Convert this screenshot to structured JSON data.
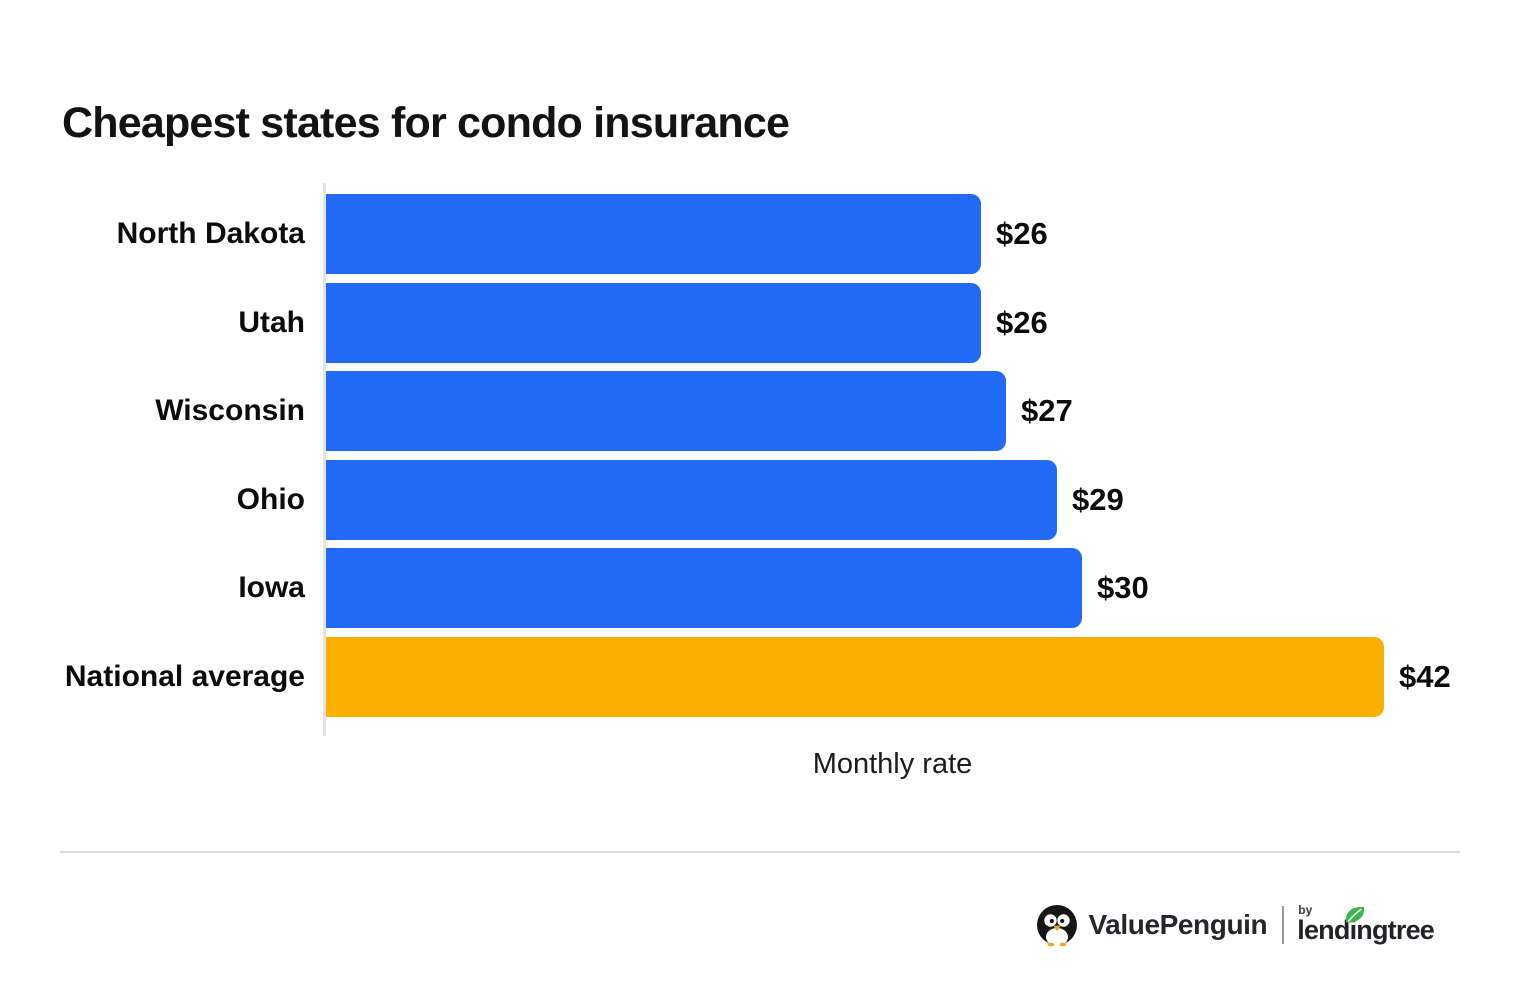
{
  "page": {
    "background": "#ffffff"
  },
  "title": "Cheapest states for condo insurance",
  "chart_data": {
    "type": "bar",
    "orientation": "horizontal",
    "title": "Cheapest states for condo insurance",
    "categories": [
      "North Dakota",
      "Utah",
      "Wisconsin",
      "Ohio",
      "Iowa",
      "National average"
    ],
    "values": [
      26,
      26,
      27,
      29,
      30,
      42
    ],
    "value_labels": [
      "$26",
      "$26",
      "$27",
      "$29",
      "$30",
      "$42"
    ],
    "xlabel": "Monthly rate",
    "ylabel": "",
    "xlim": [
      0,
      42
    ],
    "grid": false,
    "legend_position": "none",
    "bar_colors": [
      "#2269F6",
      "#2269F6",
      "#2269F6",
      "#2269F6",
      "#2269F6",
      "#FBB000"
    ],
    "highlight_index": 5,
    "colors": {
      "state_bar_blue": "#2269F6",
      "national_average_orange": "#FBB000",
      "axis_line": "#e3e3e3",
      "label_text": "#0c0c0c"
    }
  },
  "footer": {
    "valuepenguin_label": "ValuePenguin",
    "by_label": "by",
    "lendingtree_full": "lendingtree",
    "lendingtree_parts": {
      "pre": "lend",
      "i": "i",
      "post": "ngtree"
    },
    "icons": {
      "penguin_logo": "penguin-icon",
      "leaf": "leaf-icon"
    },
    "colors": {
      "leaf_green": "#3CB54A",
      "wordmark_dark": "#26272b",
      "divider_gray": "#dcdcdc"
    }
  }
}
